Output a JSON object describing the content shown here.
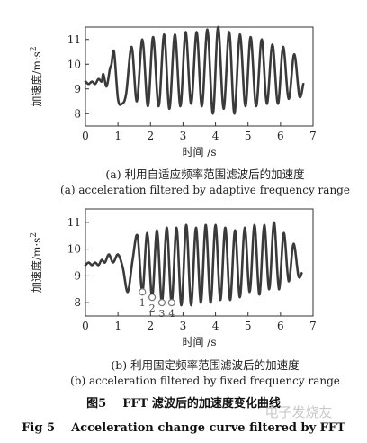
{
  "chart_data": [
    {
      "type": "line",
      "ylabel_zh": "加速度",
      "ylabel_unit": "/m·s",
      "ylabel_exp": "2",
      "xlabel": "时间 /s",
      "xlim": [
        0,
        7
      ],
      "ylim": [
        7.5,
        11.5
      ],
      "xticks": [
        0,
        1,
        2,
        3,
        4,
        5,
        6,
        7
      ],
      "yticks": [
        8,
        9,
        10,
        11
      ],
      "grid": false,
      "caption_zh": "(a) 利用自适应频率范围滤波后的加速度",
      "caption_en": "(a) acceleration filtered by adaptive frequency range",
      "series": [
        {
          "x": [
            0,
            0.1,
            0.2,
            0.3,
            0.4,
            0.5,
            0.55,
            0.65,
            0.75,
            0.8,
            0.88,
            1.0,
            1.12,
            1.25,
            1.42,
            1.58,
            1.75,
            1.92,
            2.08,
            2.25,
            2.42,
            2.58,
            2.75,
            2.92,
            3.08,
            3.25,
            3.42,
            3.58,
            3.75,
            3.92,
            4.08,
            4.25,
            4.42,
            4.58,
            4.75,
            4.92,
            5.08,
            5.25,
            5.42,
            5.58,
            5.75,
            5.92,
            6.08,
            6.25,
            6.42,
            6.58,
            6.7
          ],
          "y": [
            9.3,
            9.2,
            9.3,
            9.2,
            9.4,
            9.3,
            9.6,
            9.1,
            9.8,
            10.0,
            10.5,
            8.6,
            8.4,
            8.8,
            10.7,
            8.5,
            11.0,
            8.3,
            11.1,
            8.3,
            11.2,
            8.2,
            11.2,
            8.3,
            11.3,
            8.4,
            11.3,
            8.3,
            11.4,
            8.0,
            11.5,
            8.2,
            11.3,
            8.0,
            11.2,
            8.3,
            11.1,
            8.3,
            11.0,
            8.4,
            10.8,
            8.4,
            10.7,
            8.6,
            10.4,
            8.7,
            9.2
          ]
        }
      ]
    },
    {
      "type": "line",
      "ylabel_zh": "加速度",
      "ylabel_unit": "/m·s",
      "ylabel_exp": "2",
      "xlabel": "时间 /s",
      "xlim": [
        0,
        7
      ],
      "ylim": [
        7.5,
        11.5
      ],
      "xticks": [
        0,
        1,
        2,
        3,
        4,
        5,
        6,
        7
      ],
      "yticks": [
        8,
        9,
        10,
        11
      ],
      "grid": false,
      "caption_zh": "(b) 利用固定频率范围滤波后的加速度",
      "caption_en": "(b) acceleration filtered by fixed frequency range",
      "annotations": [
        "1",
        "2",
        "3",
        "4"
      ],
      "series": [
        {
          "x": [
            0,
            0.1,
            0.2,
            0.3,
            0.4,
            0.5,
            0.6,
            0.72,
            0.85,
            1.0,
            1.15,
            1.3,
            1.45,
            1.6,
            1.75,
            1.9,
            2.05,
            2.2,
            2.35,
            2.5,
            2.65,
            2.8,
            2.95,
            3.1,
            3.25,
            3.4,
            3.55,
            3.7,
            3.85,
            4.0,
            4.15,
            4.3,
            4.45,
            4.6,
            4.75,
            4.9,
            5.05,
            5.2,
            5.35,
            5.5,
            5.65,
            5.8,
            5.95,
            6.1,
            6.25,
            6.4,
            6.55,
            6.65
          ],
          "y": [
            9.4,
            9.5,
            9.4,
            9.5,
            9.4,
            9.6,
            9.5,
            9.8,
            9.5,
            9.8,
            9.3,
            8.4,
            9.6,
            10.5,
            8.4,
            10.6,
            8.2,
            10.7,
            8.0,
            10.8,
            8.0,
            10.8,
            7.9,
            10.9,
            7.9,
            10.8,
            8.0,
            10.9,
            8.0,
            10.9,
            8.1,
            10.8,
            8.1,
            10.7,
            8.2,
            10.8,
            8.4,
            10.9,
            8.3,
            10.9,
            8.5,
            11.0,
            8.5,
            10.6,
            8.8,
            10.2,
            9.0,
            9.1
          ]
        }
      ]
    }
  ],
  "figure_title_zh": "图5    FFT 滤波后的加速度变化曲线",
  "figure_title_en": "Fig 5    Acceleration change curve filtered by FFT",
  "watermark": "电子发烧友"
}
